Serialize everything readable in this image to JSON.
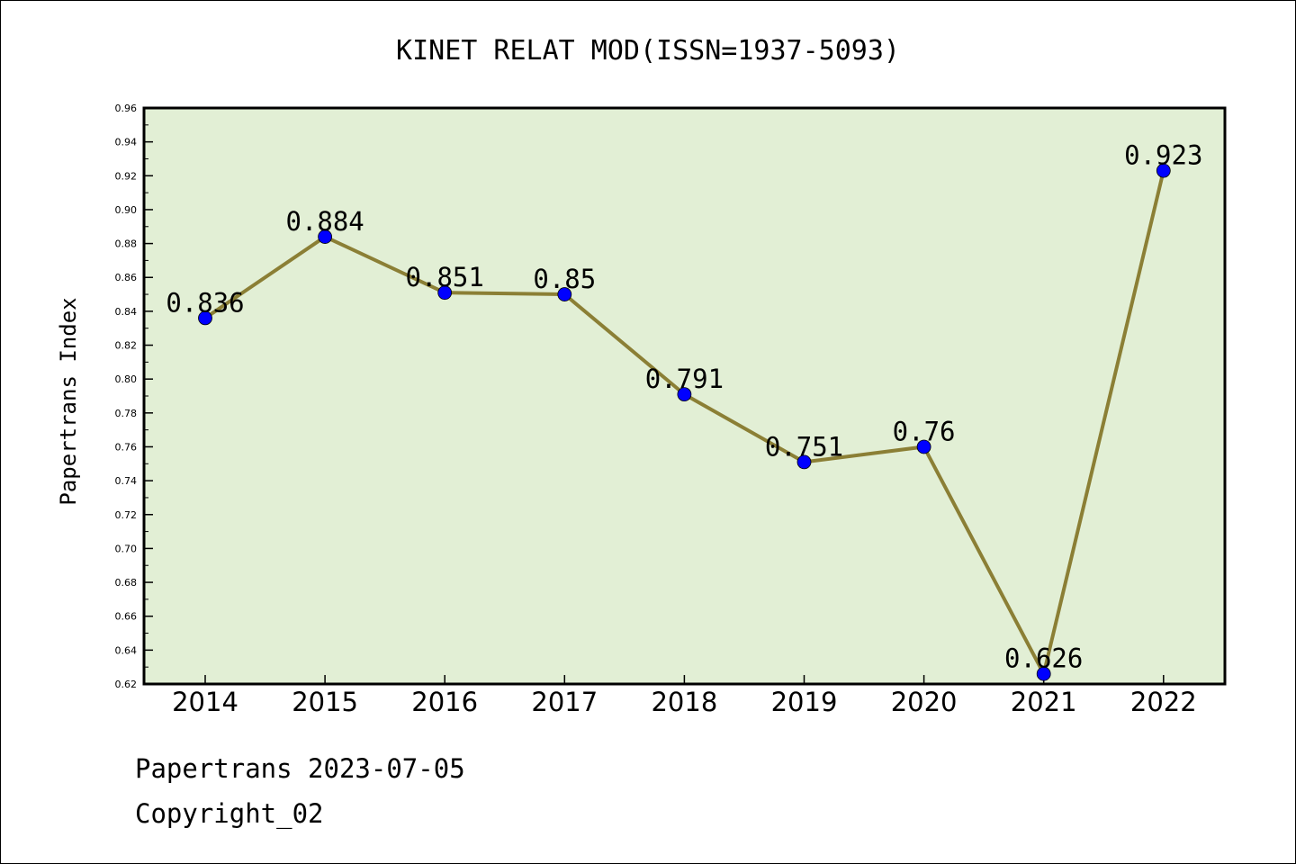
{
  "chart_data": {
    "type": "line",
    "title": "KINET RELAT MOD(ISSN=1937-5093)",
    "ylabel": "Papertrans Index",
    "xlabel": "",
    "categories": [
      "2014",
      "2015",
      "2016",
      "2017",
      "2018",
      "2019",
      "2020",
      "2021",
      "2022"
    ],
    "values": [
      0.836,
      0.884,
      0.851,
      0.85,
      0.791,
      0.751,
      0.76,
      0.626,
      0.923
    ],
    "data_labels": [
      "0.836",
      "0.884",
      "0.851",
      "0.85",
      "0.791",
      "0.751",
      "0.76",
      "0.626",
      "0.923"
    ],
    "ylim": [
      0.62,
      0.96
    ],
    "yticks": [
      "0.62",
      "0.64",
      "0.66",
      "0.68",
      "0.70",
      "0.72",
      "0.74",
      "0.76",
      "0.78",
      "0.80",
      "0.82",
      "0.84",
      "0.86",
      "0.88",
      "0.90",
      "0.92",
      "0.94",
      "0.96"
    ],
    "grid": false,
    "colors": {
      "plot_background": "#e2efd5",
      "line": "#8b7f35",
      "marker": "#0000ff"
    }
  },
  "footer": {
    "line1": "Papertrans 2023-07-05",
    "line2": "Copyright_02"
  }
}
